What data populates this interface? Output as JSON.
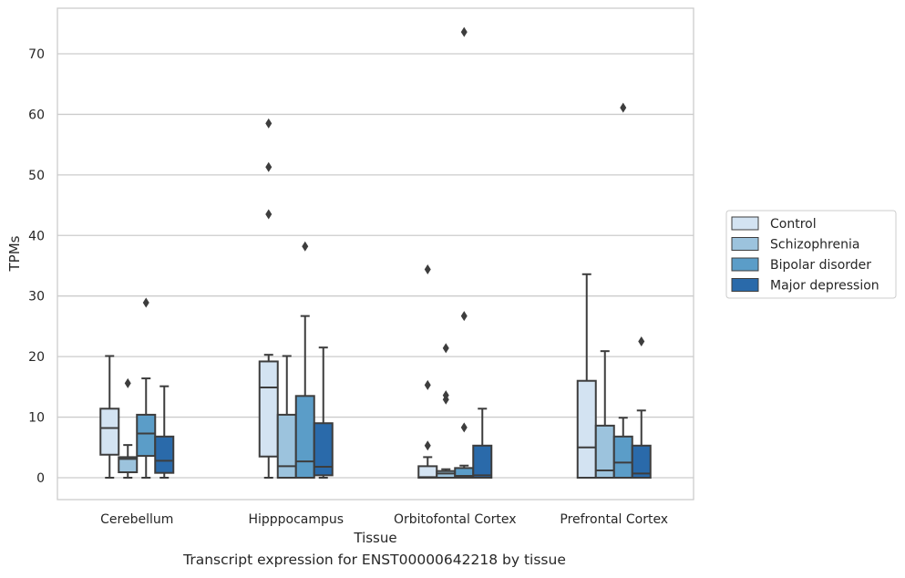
{
  "caption": "Transcript expression for ENST00000642218 by tissue",
  "chart_data": {
    "type": "box",
    "xlabel": "Tissue",
    "ylabel": "TPMs",
    "ylim": [
      -3.5,
      77
    ],
    "yticks": [
      0,
      10,
      20,
      30,
      40,
      50,
      60,
      70
    ],
    "grid": "horizontal",
    "legend_position": "right",
    "categories": [
      "Cerebellum",
      "Hipppocampus",
      "Orbitofontal Cortex",
      "Prefrontal Cortex"
    ],
    "series": [
      {
        "name": "Control",
        "color": "#d3e3f2",
        "boxes": [
          {
            "whisker_low": 0,
            "q1": 3.8,
            "median": 8.2,
            "q3": 11.4,
            "whisker_high": 20.1,
            "outliers": []
          },
          {
            "whisker_low": 0,
            "q1": 3.5,
            "median": 14.9,
            "q3": 19.2,
            "whisker_high": 20.3,
            "outliers": [
              43.5,
              51.3,
              58.5
            ]
          },
          {
            "whisker_low": 0,
            "q1": 0,
            "median": 0.1,
            "q3": 1.9,
            "whisker_high": 3.4,
            "outliers": [
              5.3,
              15.3,
              34.4
            ]
          },
          {
            "whisker_low": 0,
            "q1": 0,
            "median": 5.0,
            "q3": 16.0,
            "whisker_high": 33.6,
            "outliers": []
          }
        ]
      },
      {
        "name": "Schizophrenia",
        "color": "#9cc3dd",
        "boxes": [
          {
            "whisker_low": 0,
            "q1": 0.9,
            "median": 3.1,
            "q3": 3.4,
            "whisker_high": 5.4,
            "outliers": [
              15.6
            ]
          },
          {
            "whisker_low": 0,
            "q1": 0,
            "median": 1.9,
            "q3": 10.4,
            "whisker_high": 20.1,
            "outliers": []
          },
          {
            "whisker_low": 0,
            "q1": 0,
            "median": 0.7,
            "q3": 1.1,
            "whisker_high": 1.4,
            "outliers": [
              12.9,
              13.6,
              21.4
            ]
          },
          {
            "whisker_low": 0,
            "q1": 0,
            "median": 1.2,
            "q3": 8.6,
            "whisker_high": 20.9,
            "outliers": []
          }
        ]
      },
      {
        "name": "Bipolar disorder",
        "color": "#5b9dc8",
        "boxes": [
          {
            "whisker_low": 0,
            "q1": 3.6,
            "median": 7.3,
            "q3": 10.4,
            "whisker_high": 16.4,
            "outliers": [
              28.9
            ]
          },
          {
            "whisker_low": 0,
            "q1": 0,
            "median": 2.7,
            "q3": 13.5,
            "whisker_high": 26.7,
            "outliers": [
              38.2
            ]
          },
          {
            "whisker_low": 0,
            "q1": 0,
            "median": 0.3,
            "q3": 1.6,
            "whisker_high": 2.0,
            "outliers": [
              8.3,
              26.7,
              73.6
            ]
          },
          {
            "whisker_low": 0,
            "q1": 0,
            "median": 2.5,
            "q3": 6.8,
            "whisker_high": 9.9,
            "outliers": [
              61.1
            ]
          }
        ]
      },
      {
        "name": "Major depression",
        "color": "#2a6aaa",
        "boxes": [
          {
            "whisker_low": 0,
            "q1": 0.8,
            "median": 2.8,
            "q3": 6.8,
            "whisker_high": 15.1,
            "outliers": []
          },
          {
            "whisker_low": 0,
            "q1": 0.4,
            "median": 1.8,
            "q3": 9.0,
            "whisker_high": 21.5,
            "outliers": []
          },
          {
            "whisker_low": 0,
            "q1": 0,
            "median": 0.4,
            "q3": 5.3,
            "whisker_high": 11.4,
            "outliers": []
          },
          {
            "whisker_low": 0,
            "q1": 0,
            "median": 0.7,
            "q3": 5.3,
            "whisker_high": 11.1,
            "outliers": [
              22.5
            ]
          }
        ]
      }
    ]
  }
}
